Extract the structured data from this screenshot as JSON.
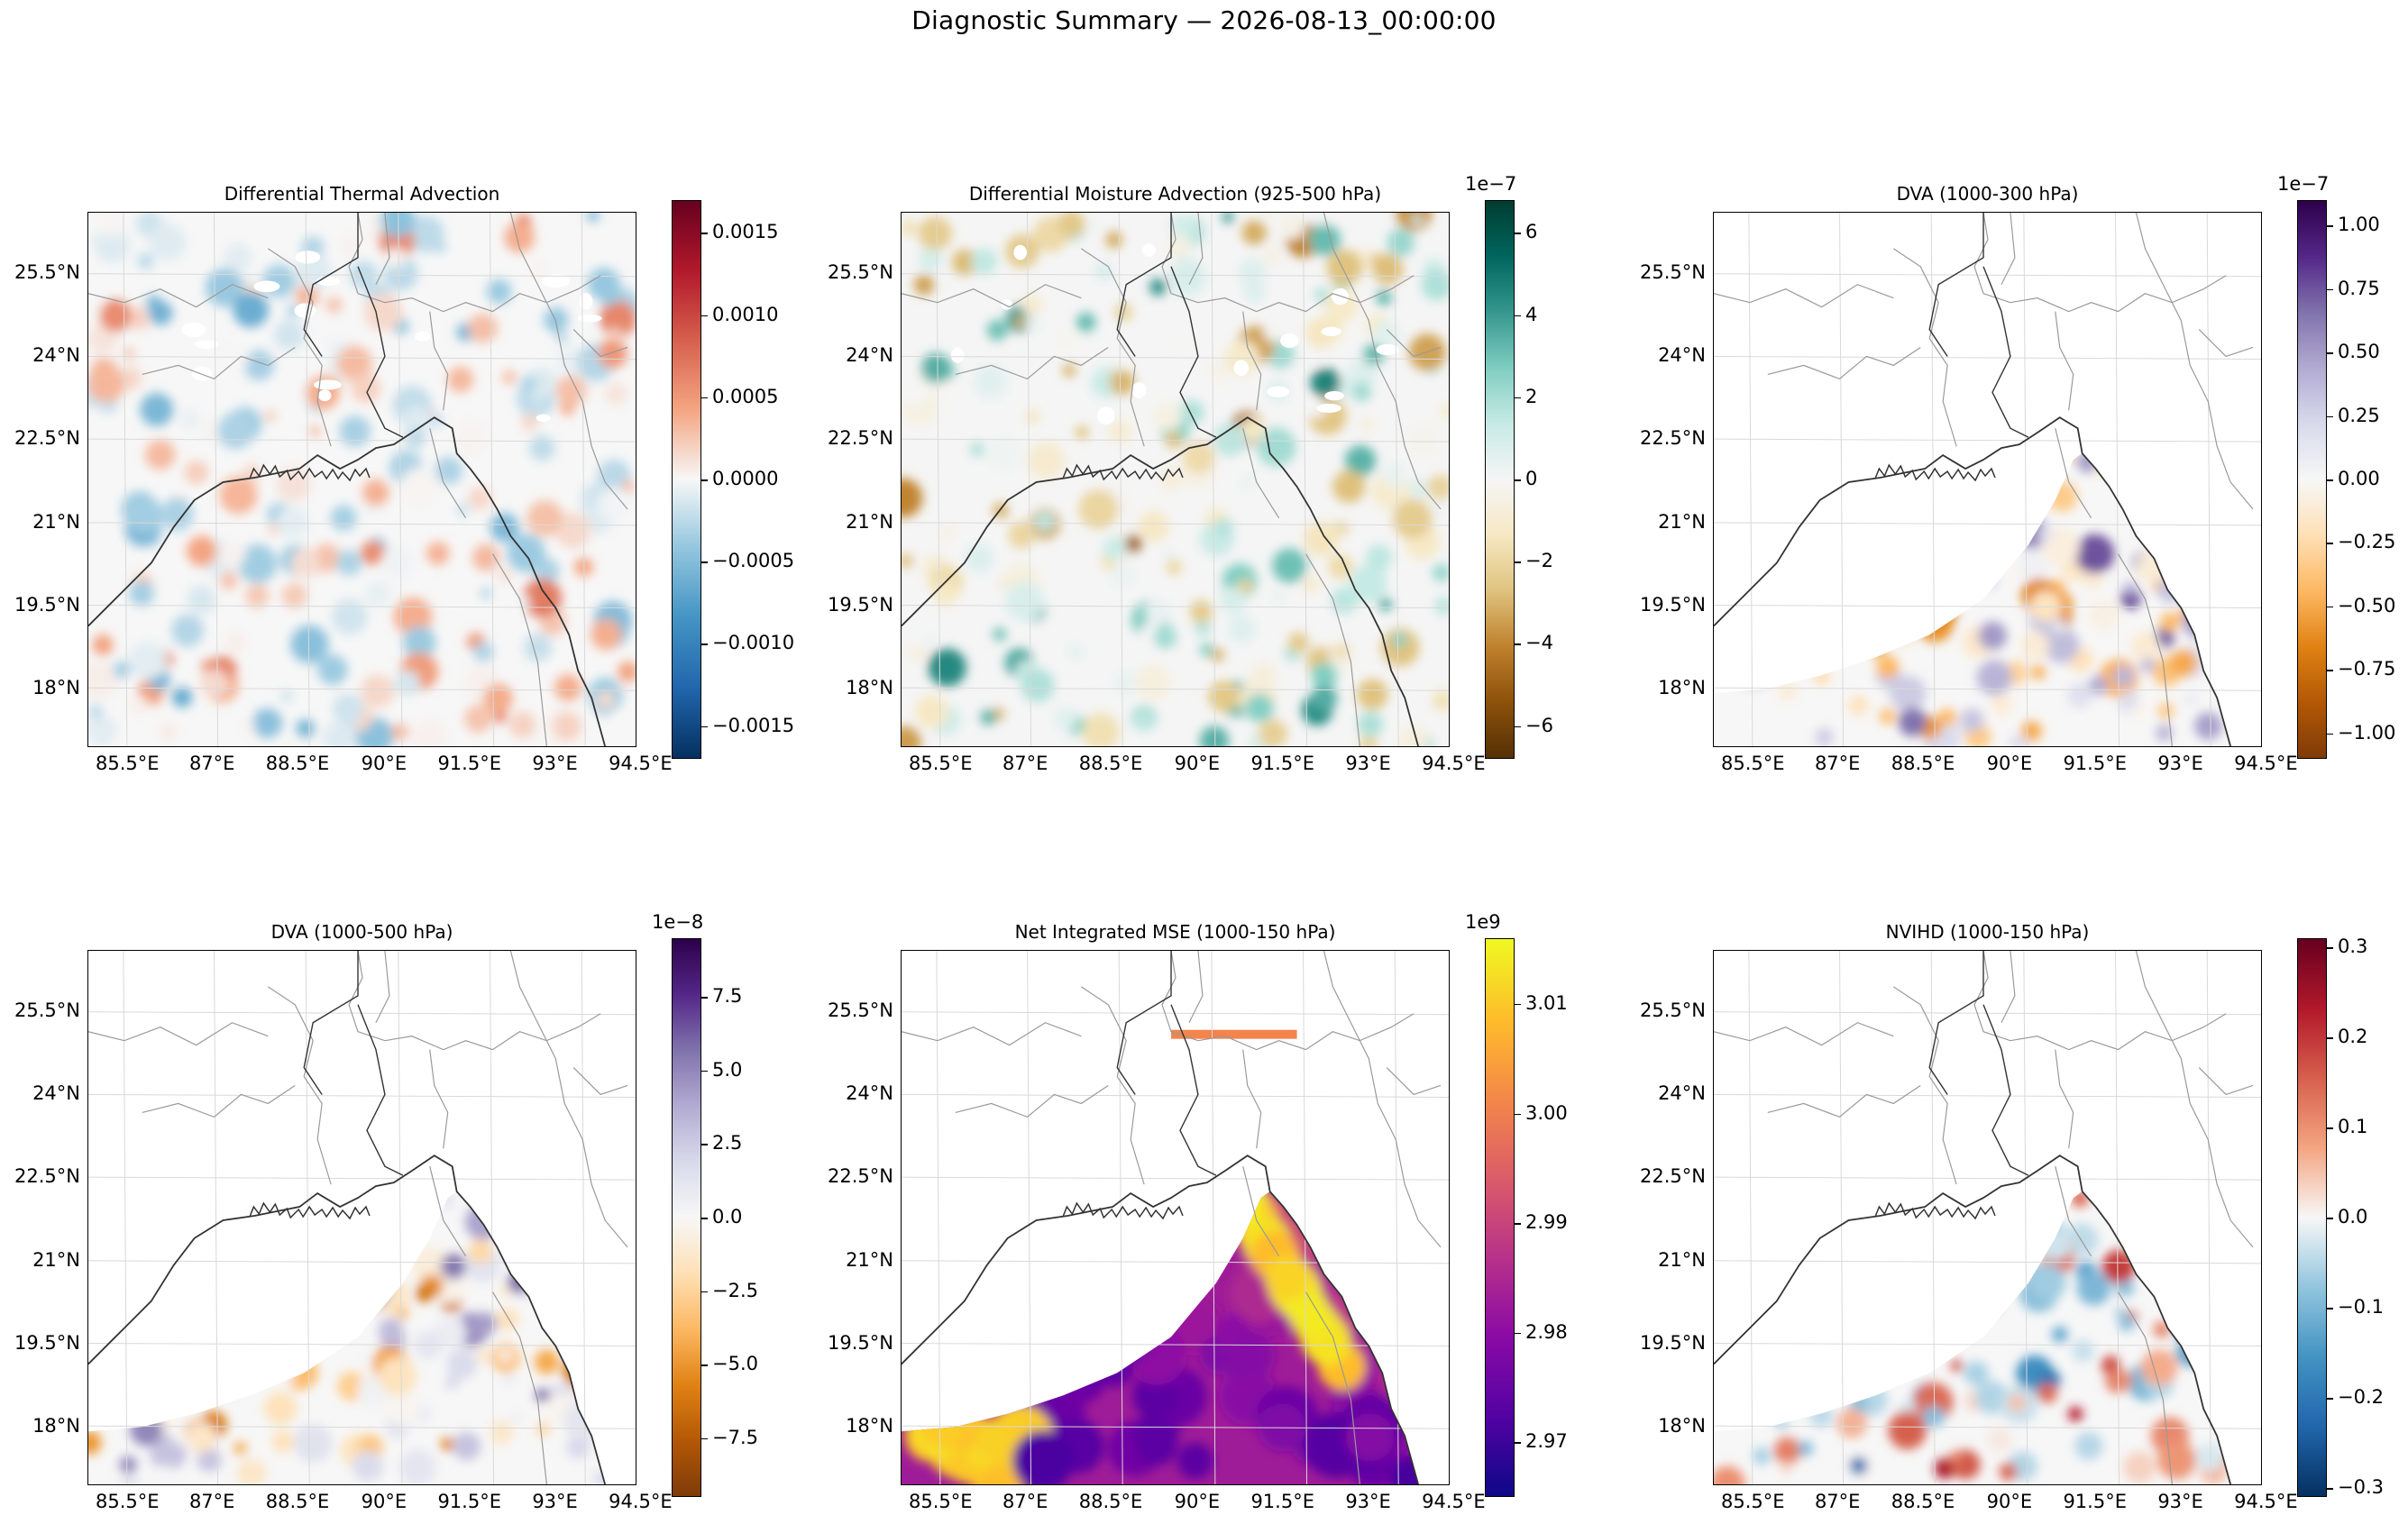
{
  "suptitle": "Diagnostic Summary — 2026-08-13_00:00:00",
  "lat_labels": [
    "25.5°N",
    "24°N",
    "22.5°N",
    "21°N",
    "19.5°N",
    "18°N"
  ],
  "lon_labels": [
    "85.5°E",
    "87°E",
    "88.5°E",
    "90°E",
    "91.5°E",
    "93°E",
    "94.5°E"
  ],
  "chart_data": [
    {
      "type": "heatmap",
      "title": "Differential Thermal Advection",
      "colormap": "RdBu_r",
      "colors": [
        "#053061",
        "#2166ac",
        "#4393c3",
        "#92c5de",
        "#f7f7f7",
        "#f4a582",
        "#d6604d",
        "#b2182b",
        "#67001f"
      ],
      "clim": [
        -0.0017,
        0.0017
      ],
      "cbar_ticks": [
        0.0015,
        0.001,
        0.0005,
        0.0,
        -0.0005,
        -0.001,
        -0.0015
      ],
      "cbar_tick_labels": [
        "0.0015",
        "0.0010",
        "0.0005",
        "0.0000",
        "−0.0005",
        "−0.0010",
        "−0.0015"
      ],
      "cbar_exponent": "",
      "coverage": "full domain"
    },
    {
      "type": "heatmap",
      "title": "Differential Moisture Advection (925-500 hPa)",
      "colormap": "BrBG",
      "colors": [
        "#543005",
        "#8c510a",
        "#bf812d",
        "#dfc27d",
        "#f6e8c3",
        "#f5f5f5",
        "#c7eae5",
        "#80cdc1",
        "#35978f",
        "#01665e",
        "#003c30"
      ],
      "clim": [
        -6.8,
        6.8
      ],
      "cbar_ticks": [
        6,
        4,
        2,
        0,
        -2,
        -4,
        -6
      ],
      "cbar_tick_labels": [
        "6",
        "4",
        "2",
        "0",
        "−2",
        "−4",
        "−6"
      ],
      "cbar_exponent": "1e−7",
      "coverage": "full domain"
    },
    {
      "type": "heatmap",
      "title": "DVA (1000-300 hPa)",
      "colormap": "PuOr",
      "colors": [
        "#7f3b08",
        "#b35806",
        "#e08214",
        "#fdb863",
        "#fee0b6",
        "#f7f7f7",
        "#d8daeb",
        "#b2abd2",
        "#8073ac",
        "#542788",
        "#2d004b"
      ],
      "clim": [
        -1.1,
        1.1
      ],
      "cbar_ticks": [
        1.0,
        0.75,
        0.5,
        0.25,
        0.0,
        -0.25,
        -0.5,
        -0.75,
        -1.0
      ],
      "cbar_tick_labels": [
        "1.00",
        "0.75",
        "0.50",
        "0.25",
        "0.00",
        "−0.25",
        "−0.50",
        "−0.75",
        "−1.00"
      ],
      "cbar_exponent": "1e−7",
      "coverage": "ocean only"
    },
    {
      "type": "heatmap",
      "title": "DVA (1000-500 hPa)",
      "colormap": "PuOr",
      "colors": [
        "#7f3b08",
        "#b35806",
        "#e08214",
        "#fdb863",
        "#fee0b6",
        "#f7f7f7",
        "#d8daeb",
        "#b2abd2",
        "#8073ac",
        "#542788",
        "#2d004b"
      ],
      "clim": [
        -9.5,
        9.5
      ],
      "cbar_ticks": [
        7.5,
        5.0,
        2.5,
        0.0,
        -2.5,
        -5.0,
        -7.5
      ],
      "cbar_tick_labels": [
        "7.5",
        "5.0",
        "2.5",
        "0.0",
        "−2.5",
        "−5.0",
        "−7.5"
      ],
      "cbar_exponent": "1e−8",
      "coverage": "ocean only"
    },
    {
      "type": "heatmap",
      "title": "Net Integrated MSE (1000-150 hPa)",
      "colormap": "plasma",
      "colors": [
        "#0d0887",
        "#5302a3",
        "#8b0aa5",
        "#b83289",
        "#db5c68",
        "#f48849",
        "#febd2a",
        "#f0f921"
      ],
      "clim": [
        2.965,
        3.016
      ],
      "cbar_ticks": [
        3.01,
        3.0,
        2.99,
        2.98,
        2.97
      ],
      "cbar_tick_labels": [
        "3.01",
        "3.00",
        "2.99",
        "2.98",
        "2.97"
      ],
      "cbar_exponent": "1e9",
      "coverage": "ocean only"
    },
    {
      "type": "heatmap",
      "title": "NVIHD (1000-150 hPa)",
      "colormap": "RdBu_r",
      "colors": [
        "#053061",
        "#2166ac",
        "#4393c3",
        "#92c5de",
        "#f7f7f7",
        "#f4a582",
        "#d6604d",
        "#b2182b",
        "#67001f"
      ],
      "clim": [
        -0.31,
        0.31
      ],
      "cbar_ticks": [
        0.3,
        0.2,
        0.1,
        0.0,
        -0.1,
        -0.2,
        -0.3
      ],
      "cbar_tick_labels": [
        "0.3",
        "0.2",
        "0.1",
        "0.0",
        "−0.1",
        "−0.2",
        "−0.3"
      ],
      "cbar_exponent": "",
      "coverage": "ocean only"
    }
  ]
}
